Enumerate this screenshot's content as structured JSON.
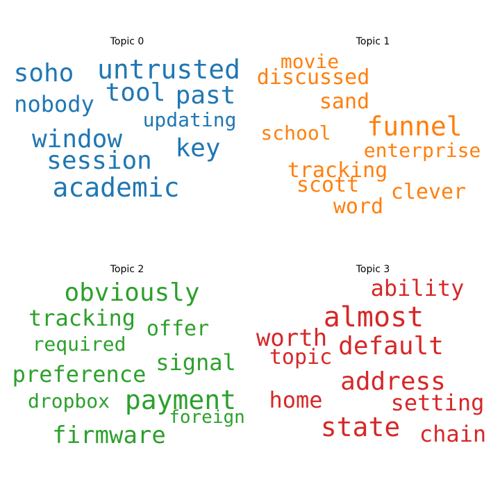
{
  "topics": [
    {
      "title": "Topic 0",
      "color": "#1f77b4",
      "words": [
        "untrusted",
        "soho",
        "tool",
        "past",
        "nobody",
        "updating",
        "window",
        "key",
        "session",
        "academic"
      ]
    },
    {
      "title": "Topic 1",
      "color": "#ff7f0e",
      "words": [
        "movie",
        "discussed",
        "sand",
        "funnel",
        "school",
        "enterprise",
        "tracking",
        "scott",
        "clever",
        "word"
      ]
    },
    {
      "title": "Topic 2",
      "color": "#2ca02c",
      "words": [
        "obviously",
        "tracking",
        "offer",
        "required",
        "signal",
        "preference",
        "payment",
        "dropbox",
        "foreign",
        "firmware"
      ]
    },
    {
      "title": "Topic 3",
      "color": "#d62728",
      "words": [
        "ability",
        "almost",
        "worth",
        "default",
        "topic",
        "address",
        "home",
        "setting",
        "state",
        "chain"
      ]
    }
  ]
}
